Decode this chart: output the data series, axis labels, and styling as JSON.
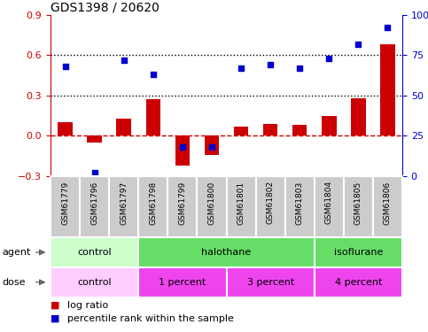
{
  "title": "GDS1398 / 20620",
  "samples": [
    "GSM61779",
    "GSM61796",
    "GSM61797",
    "GSM61798",
    "GSM61799",
    "GSM61800",
    "GSM61801",
    "GSM61802",
    "GSM61803",
    "GSM61804",
    "GSM61805",
    "GSM61806"
  ],
  "log_ratio": [
    0.1,
    -0.05,
    0.13,
    0.27,
    -0.22,
    -0.14,
    0.07,
    0.09,
    0.08,
    0.15,
    0.28,
    0.68
  ],
  "percentile": [
    68,
    2,
    72,
    63,
    18,
    18,
    67,
    69,
    67,
    73,
    82,
    92
  ],
  "bar_color": "#cc0000",
  "dot_color": "#0000cc",
  "ylim_left": [
    -0.3,
    0.9
  ],
  "ylim_right": [
    0,
    100
  ],
  "yticks_left": [
    -0.3,
    0.0,
    0.3,
    0.6,
    0.9
  ],
  "yticks_right": [
    0,
    25,
    50,
    75,
    100
  ],
  "ytick_labels_right": [
    "0",
    "25",
    "50",
    "75",
    "100%"
  ],
  "hline_dotted": [
    0.6,
    0.3
  ],
  "zero_dashed_color": "#cc0000",
  "dot_line_color": "#000000",
  "agent_groups": [
    {
      "label": "control",
      "start": 0,
      "end": 3,
      "color": "#ccffcc"
    },
    {
      "label": "halothane",
      "start": 3,
      "end": 9,
      "color": "#66dd66"
    },
    {
      "label": "isoflurane",
      "start": 9,
      "end": 12,
      "color": "#66dd66"
    }
  ],
  "dose_groups": [
    {
      "label": "control",
      "start": 0,
      "end": 3,
      "color": "#ffccff"
    },
    {
      "label": "1 percent",
      "start": 3,
      "end": 6,
      "color": "#ee44ee"
    },
    {
      "label": "3 percent",
      "start": 6,
      "end": 9,
      "color": "#ee44ee"
    },
    {
      "label": "4 percent",
      "start": 9,
      "end": 12,
      "color": "#ee44ee"
    }
  ],
  "legend": [
    {
      "label": "log ratio",
      "color": "#cc0000",
      "marker": "s"
    },
    {
      "label": "percentile rank within the sample",
      "color": "#0000cc",
      "marker": "s"
    }
  ],
  "bg_color": "#ffffff",
  "plot_bg": "#ffffff",
  "sample_box_color": "#cccccc",
  "left_tick_color": "#cc0000",
  "right_tick_color": "#0000cc",
  "bar_width": 0.5,
  "figsize": [
    4.83,
    3.75
  ],
  "dpi": 100
}
